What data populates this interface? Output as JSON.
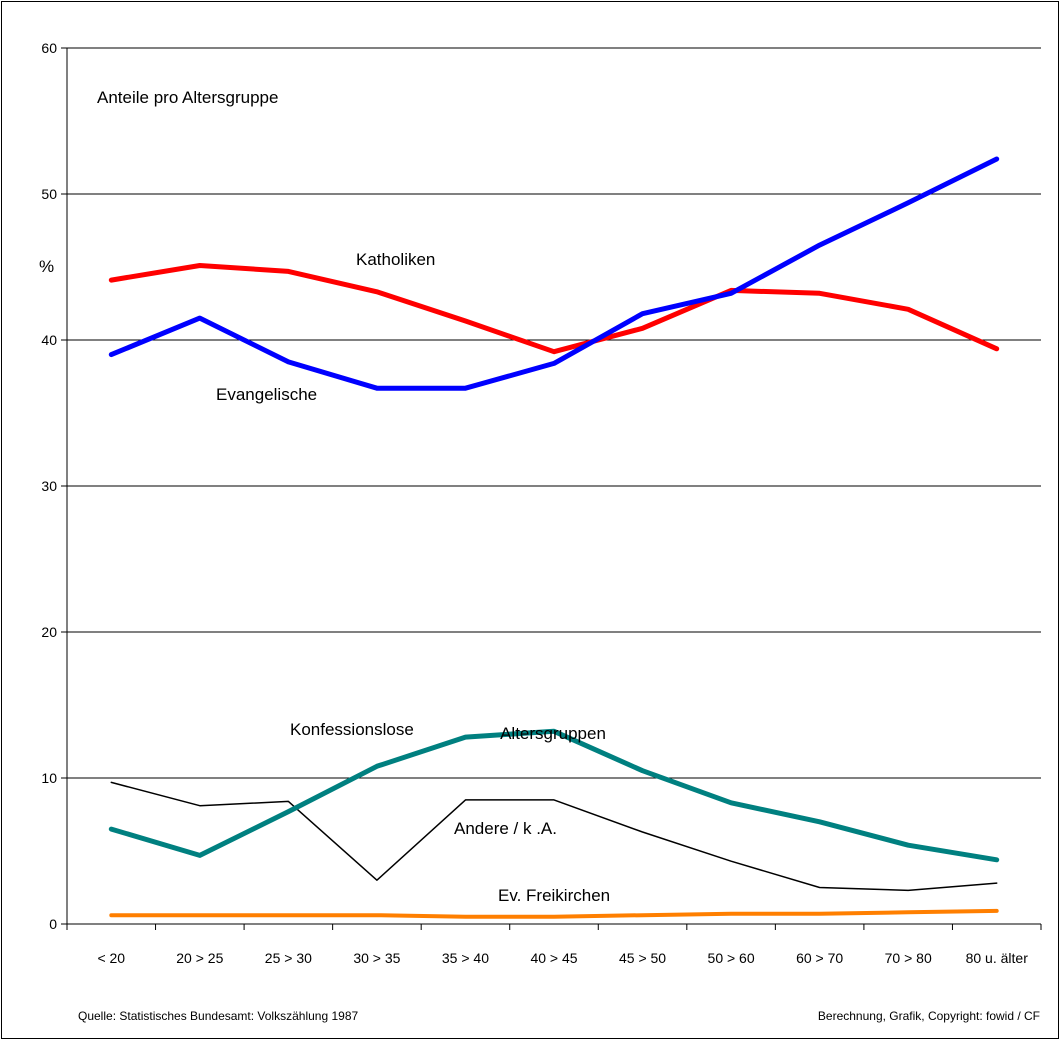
{
  "chart_data": {
    "type": "line",
    "title": "Anteile pro Altersgruppe",
    "ylabel": "%",
    "xlabel": "Altersgruppen",
    "ylim": [
      0,
      60
    ],
    "yticks": [
      0,
      10,
      20,
      30,
      40,
      50,
      60
    ],
    "grid": true,
    "categories": [
      "< 20",
      "20 > 25",
      "25 > 30",
      "30 > 35",
      "35 > 40",
      "40 > 45",
      "45 > 50",
      "50 > 60",
      "60 > 70",
      "70 > 80",
      "80 u. älter"
    ],
    "series": [
      {
        "name": "Katholiken",
        "color": "#ff0000",
        "width": 5,
        "values": [
          44.1,
          45.1,
          44.7,
          43.3,
          41.3,
          39.2,
          40.8,
          43.4,
          43.2,
          42.1,
          39.4
        ]
      },
      {
        "name": "Evangelische",
        "color": "#0000ff",
        "width": 5,
        "values": [
          39.0,
          41.5,
          38.5,
          36.7,
          36.7,
          38.4,
          41.8,
          43.2,
          46.5,
          49.4,
          52.4
        ]
      },
      {
        "name": "Konfessionslose",
        "color": "#008080",
        "width": 5,
        "values": [
          6.5,
          4.7,
          7.7,
          10.8,
          12.8,
          13.2,
          10.5,
          8.3,
          7.0,
          5.4,
          4.4
        ]
      },
      {
        "name": "Andere / k .A.",
        "color": "#000000",
        "width": 1.5,
        "values": [
          9.7,
          8.1,
          8.4,
          3.0,
          8.5,
          8.5,
          6.3,
          4.3,
          2.5,
          2.3,
          2.8
        ]
      },
      {
        "name": "Ev. Freikirchen",
        "color": "#ff7f00",
        "width": 4,
        "values": [
          0.6,
          0.6,
          0.6,
          0.6,
          0.5,
          0.5,
          0.6,
          0.7,
          0.7,
          0.8,
          0.9
        ]
      }
    ],
    "source_note": "Quelle: Statistisches Bundesamt: Volkszählung 1987",
    "copyright_note": "Berechnung, Grafik, Copyright: fowid / CF"
  }
}
